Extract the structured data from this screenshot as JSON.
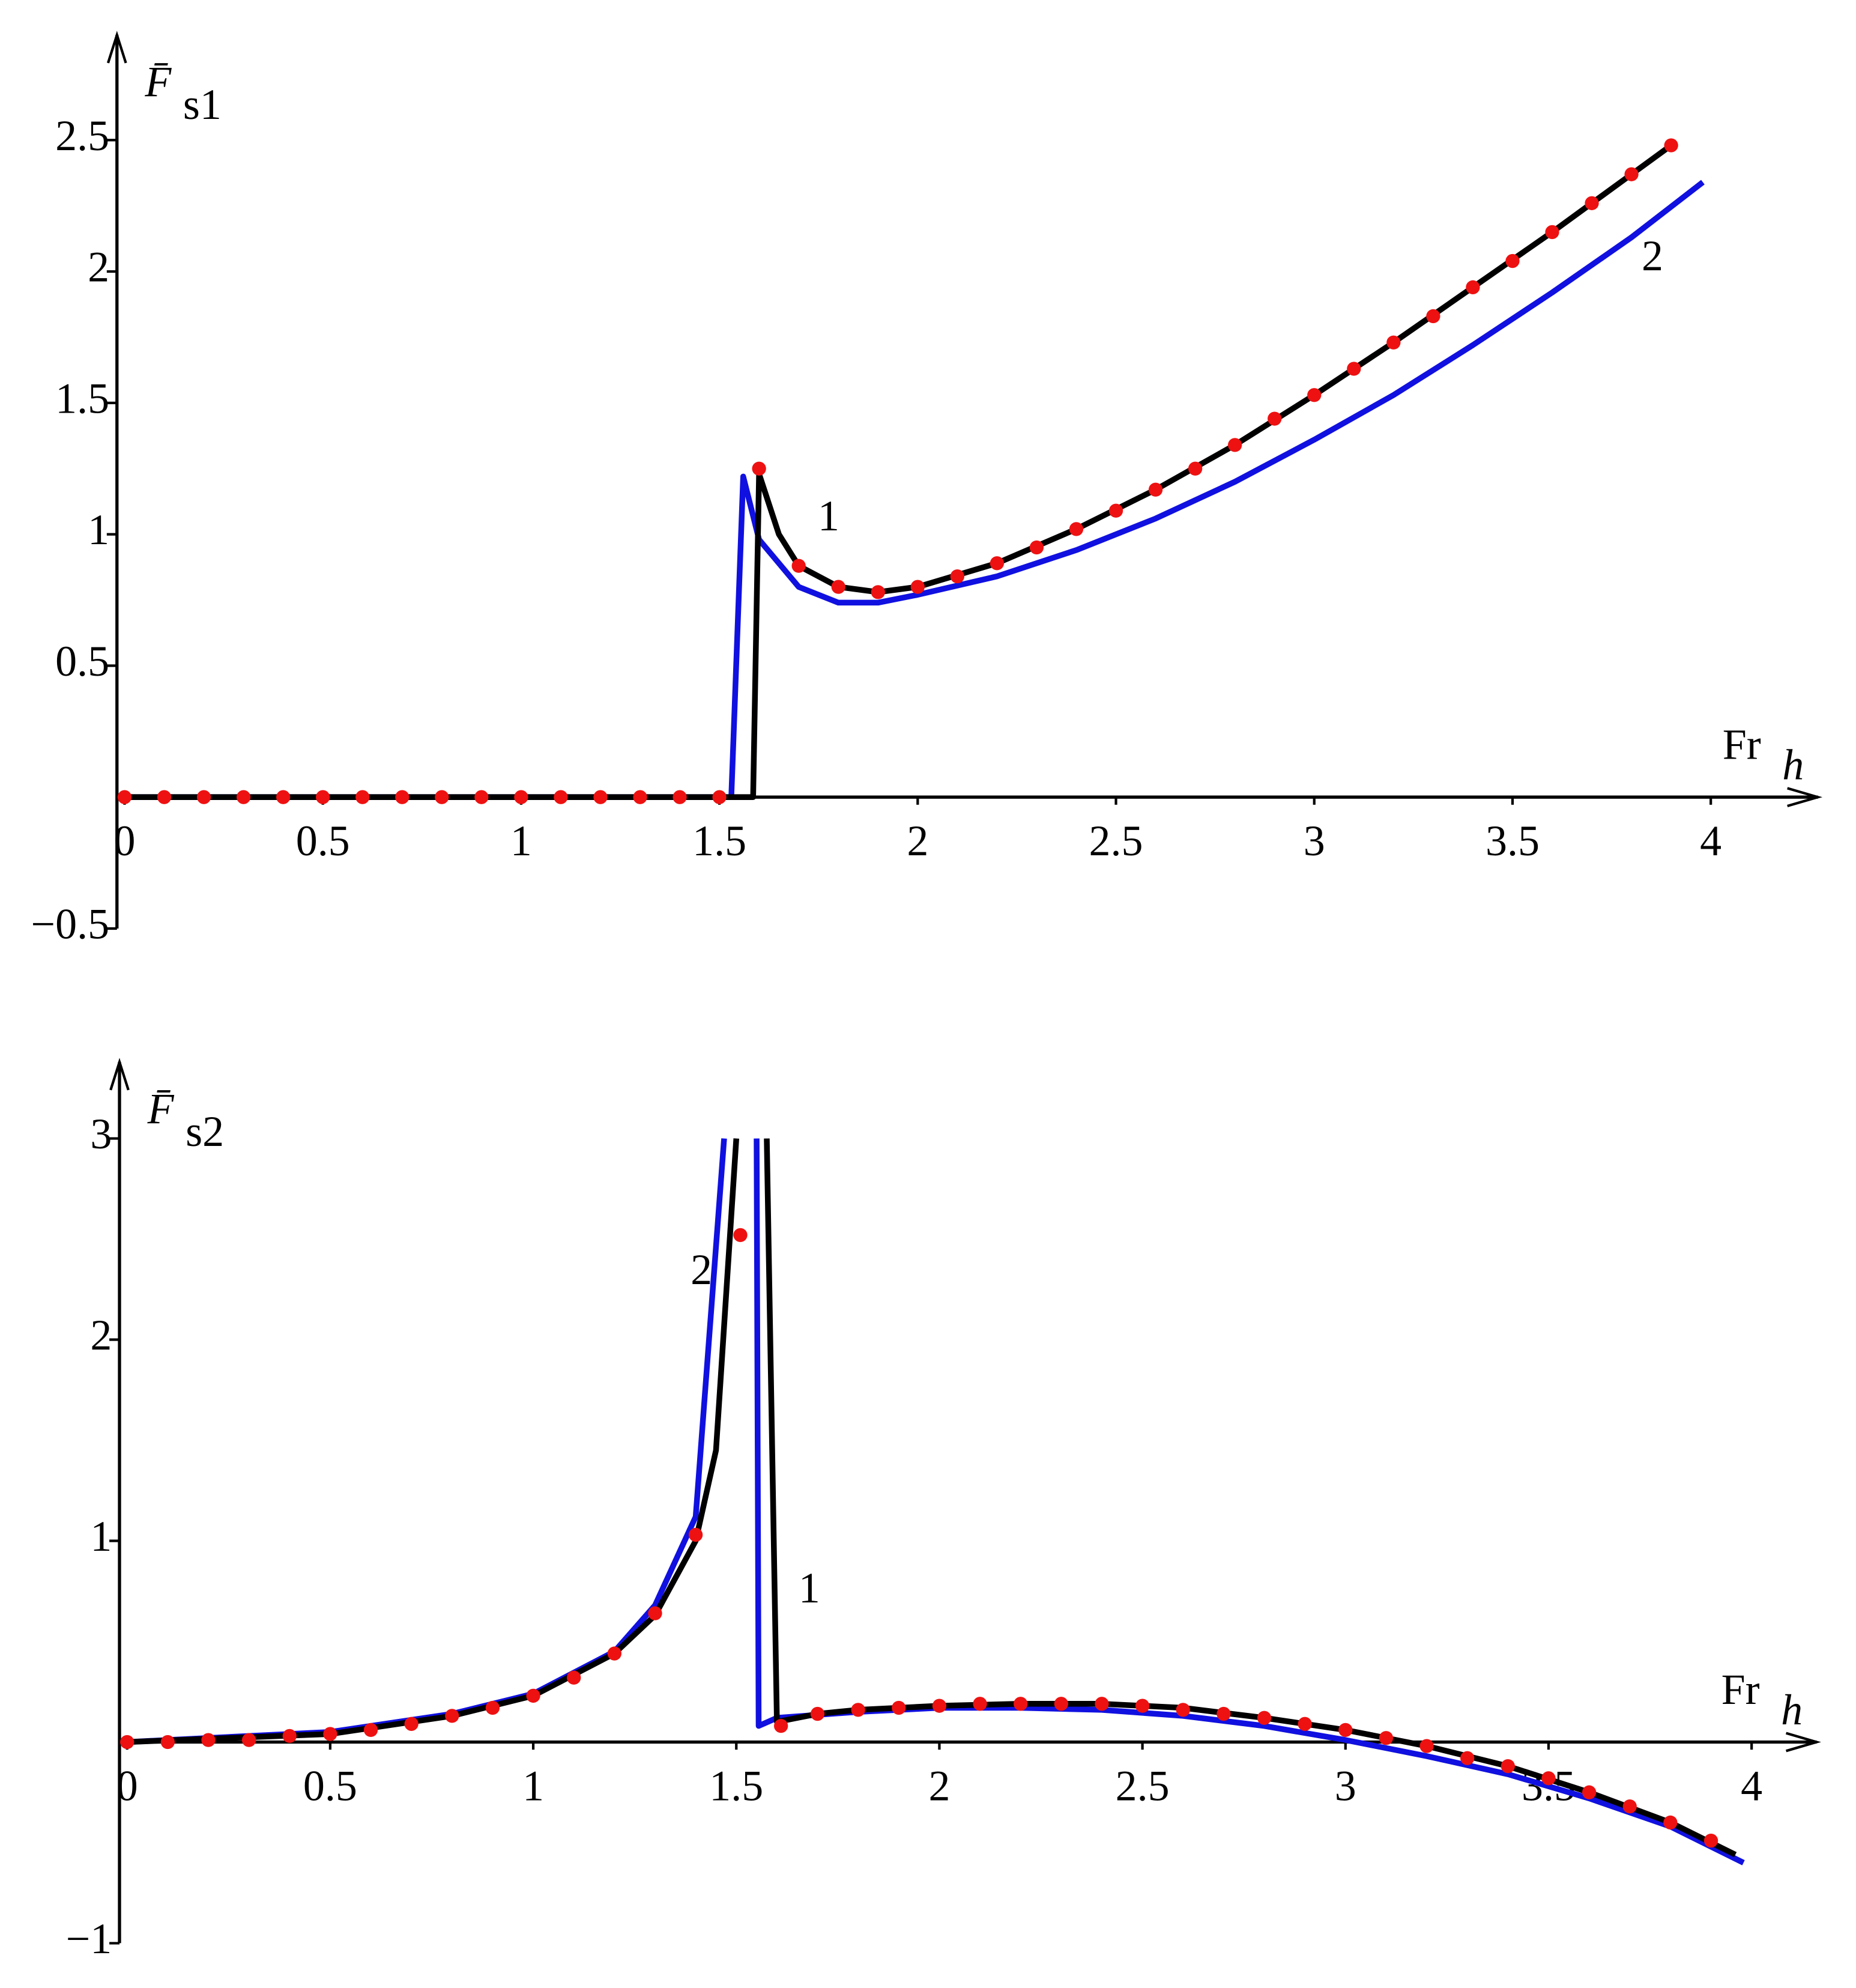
{
  "chart_data": [
    {
      "type": "line",
      "ylabel": "F̄",
      "ylabel_sub": "s1",
      "xlabel": "Fr",
      "xlabel_sub": "h",
      "xlim": [
        0,
        4.27
      ],
      "ylim": [
        -0.5,
        2.9
      ],
      "xticks": [
        0,
        0.5,
        1,
        1.5,
        2,
        2.5,
        3,
        3.5,
        4
      ],
      "yticks": [
        {
          "value": -0.5,
          "label": "−0.5"
        },
        0.5,
        1,
        1.5,
        2,
        2.5
      ],
      "series": [
        {
          "name": "1",
          "color": "#000000",
          "x": [
            0,
            1.585,
            1.6,
            1.65,
            1.7,
            1.8,
            1.9,
            2.0,
            2.2,
            2.4,
            2.6,
            2.8,
            3.0,
            3.2,
            3.4,
            3.6,
            3.8,
            3.9
          ],
          "values": [
            0,
            0,
            1.23,
            1.0,
            0.88,
            0.8,
            0.78,
            0.8,
            0.89,
            1.02,
            1.17,
            1.34,
            1.53,
            1.73,
            1.94,
            2.15,
            2.37,
            2.48
          ]
        },
        {
          "name": "2",
          "color": "#1010e0",
          "x": [
            0,
            1.53,
            1.56,
            1.6,
            1.7,
            1.8,
            1.9,
            2.0,
            2.2,
            2.4,
            2.6,
            2.8,
            3.0,
            3.2,
            3.4,
            3.6,
            3.8,
            3.98
          ],
          "values": [
            0,
            0,
            1.22,
            0.98,
            0.8,
            0.74,
            0.74,
            0.77,
            0.84,
            0.94,
            1.06,
            1.2,
            1.36,
            1.53,
            1.72,
            1.92,
            2.13,
            2.34
          ]
        },
        {
          "color": "#ee1111",
          "marker": "dot",
          "x": [
            0,
            0.1,
            0.2,
            0.3,
            0.4,
            0.5,
            0.6,
            0.7,
            0.8,
            0.9,
            1.0,
            1.1,
            1.2,
            1.3,
            1.4,
            1.5,
            1.6,
            1.7,
            1.8,
            1.9,
            2.0,
            2.1,
            2.2,
            2.3,
            2.4,
            2.5,
            2.6,
            2.7,
            2.8,
            2.9,
            3.0,
            3.1,
            3.2,
            3.3,
            3.4,
            3.5,
            3.6,
            3.7,
            3.8,
            3.9
          ],
          "values": [
            0,
            0,
            0,
            0,
            0,
            0,
            0,
            0,
            0,
            0,
            0,
            0,
            0,
            0,
            0,
            0,
            1.25,
            0.88,
            0.8,
            0.78,
            0.8,
            0.84,
            0.89,
            0.95,
            1.02,
            1.09,
            1.17,
            1.25,
            1.34,
            1.44,
            1.53,
            1.63,
            1.73,
            1.83,
            1.94,
            2.04,
            2.15,
            2.26,
            2.37,
            2.48
          ]
        }
      ]
    },
    {
      "type": "line",
      "ylabel": "F̄",
      "ylabel_sub": "s2",
      "xlabel": "Fr",
      "xlabel_sub": "h",
      "xlim": [
        0,
        4.16
      ],
      "ylim": [
        -1,
        3.38
      ],
      "xticks": [
        0,
        0.5,
        1,
        1.5,
        2,
        2.5,
        3,
        3.5,
        4
      ],
      "yticks": [
        {
          "value": -1,
          "label": "−1"
        },
        1,
        2,
        3
      ],
      "series": [
        {
          "name": "1",
          "color": "#000000",
          "x": [
            0,
            0.5,
            0.8,
            1.0,
            1.2,
            1.3,
            1.4,
            1.45,
            1.5,
            1.54,
            1.575,
            1.6,
            1.7,
            1.8,
            2.0,
            2.2,
            2.4,
            2.6,
            2.8,
            3.0,
            3.2,
            3.4,
            3.6,
            3.8,
            3.96
          ],
          "values": [
            0,
            0.04,
            0.13,
            0.23,
            0.44,
            0.63,
            1.0,
            1.45,
            3.0,
            null,
            3.0,
            0.1,
            0.14,
            0.16,
            0.18,
            0.19,
            0.19,
            0.17,
            0.12,
            0.06,
            -0.02,
            -0.12,
            -0.25,
            -0.4,
            -0.56
          ]
        },
        {
          "name": "2",
          "color": "#1010e0",
          "x": [
            0,
            0.5,
            0.8,
            1.0,
            1.2,
            1.3,
            1.4,
            1.47,
            1.5,
            1.55,
            1.555,
            1.6,
            1.8,
            2.0,
            2.2,
            2.4,
            2.6,
            2.8,
            3.0,
            3.2,
            3.4,
            3.6,
            3.8,
            3.98
          ],
          "values": [
            0,
            0.05,
            0.14,
            0.24,
            0.45,
            0.68,
            1.12,
            3.0,
            null,
            3.0,
            0.08,
            0.12,
            0.15,
            0.17,
            0.17,
            0.16,
            0.13,
            0.08,
            0.01,
            -0.07,
            -0.16,
            -0.28,
            -0.42,
            -0.6
          ]
        },
        {
          "color": "#ee1111",
          "marker": "dot",
          "x": [
            0,
            0.1,
            0.2,
            0.3,
            0.4,
            0.5,
            0.6,
            0.7,
            0.8,
            0.9,
            1.0,
            1.1,
            1.2,
            1.3,
            1.4,
            1.51,
            1.61,
            1.7,
            1.8,
            1.9,
            2.0,
            2.1,
            2.2,
            2.3,
            2.4,
            2.5,
            2.6,
            2.7,
            2.8,
            2.9,
            3.0,
            3.1,
            3.2,
            3.3,
            3.4,
            3.5,
            3.6,
            3.7,
            3.8,
            3.9
          ],
          "values": [
            0,
            0,
            0.01,
            0.01,
            0.03,
            0.04,
            0.06,
            0.09,
            0.13,
            0.17,
            0.23,
            0.32,
            0.44,
            0.64,
            1.03,
            2.52,
            0.08,
            0.14,
            0.16,
            0.17,
            0.18,
            0.19,
            0.19,
            0.19,
            0.19,
            0.18,
            0.16,
            0.14,
            0.12,
            0.09,
            0.06,
            0.02,
            -0.02,
            -0.08,
            -0.12,
            -0.18,
            -0.25,
            -0.32,
            -0.4,
            -0.49
          ]
        }
      ]
    }
  ]
}
